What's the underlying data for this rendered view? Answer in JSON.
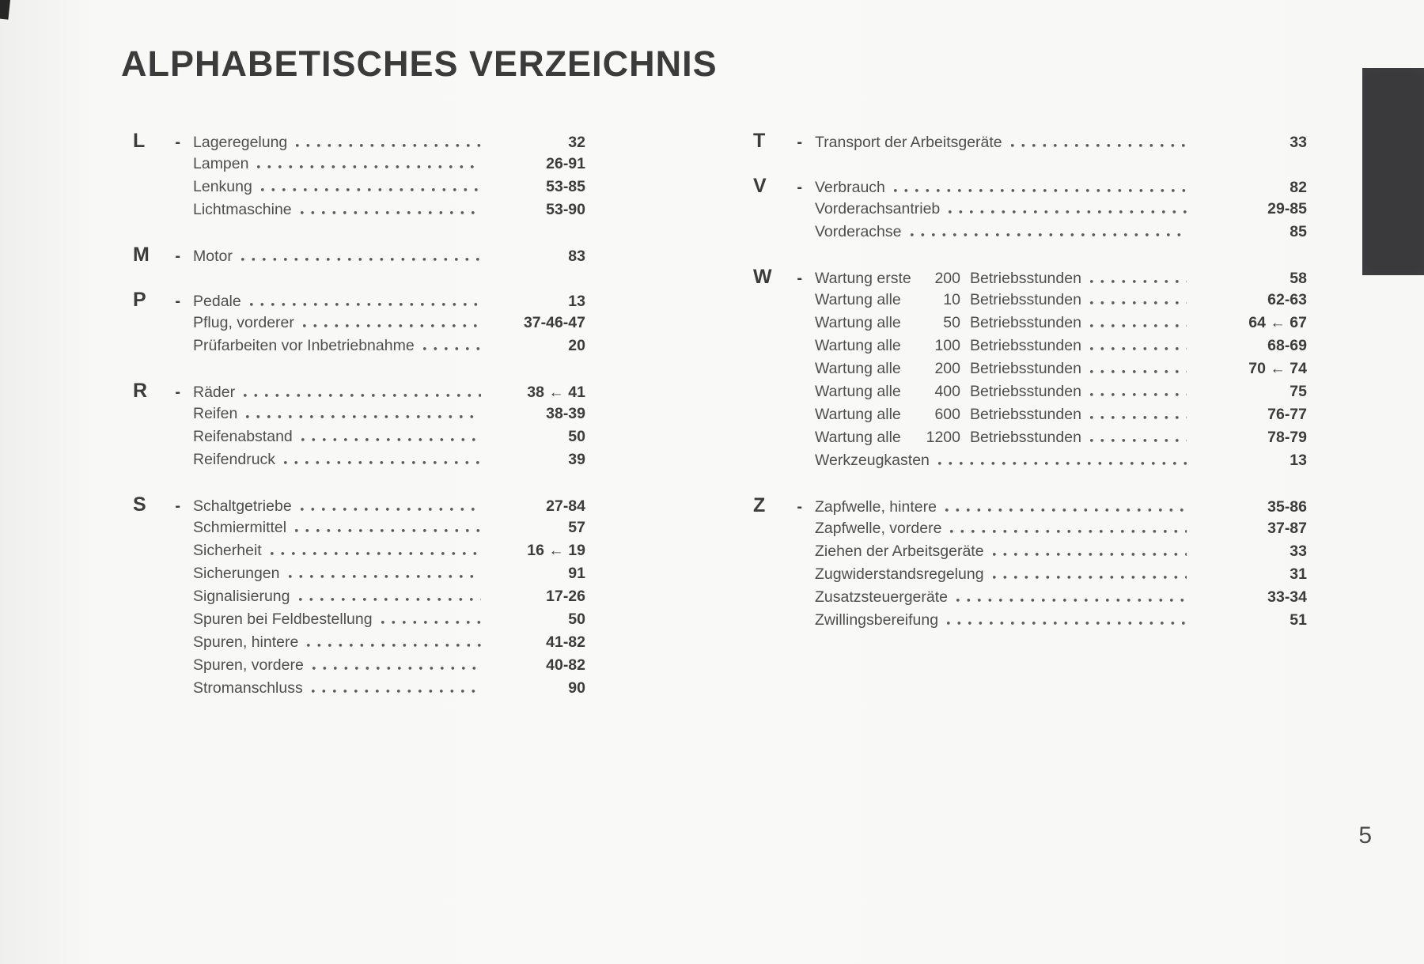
{
  "page": {
    "title": "ALPHABETISCHES VERZEICHNIS",
    "page_number": "5",
    "tab_color": "#3a393c"
  },
  "index": {
    "columns": [
      {
        "side": "left",
        "sections": [
          {
            "letter": "L",
            "entries": [
              {
                "label": "Lageregelung",
                "pages": "32"
              },
              {
                "label": "Lampen",
                "pages": "26-91"
              },
              {
                "label": "Lenkung",
                "pages": "53-85"
              },
              {
                "label": "Lichtmaschine",
                "pages": "53-90"
              }
            ]
          },
          {
            "letter": "M",
            "entries": [
              {
                "label": "Motor",
                "pages": "83"
              }
            ]
          },
          {
            "letter": "P",
            "entries": [
              {
                "label": "Pedale",
                "pages": "13"
              },
              {
                "label": "Pflug, vorderer",
                "pages": "37-46-47"
              },
              {
                "label": "Prüfarbeiten vor Inbetriebnahme",
                "pages": "20"
              }
            ]
          },
          {
            "letter": "R",
            "entries": [
              {
                "label": "Räder",
                "pages": "38 ← 41"
              },
              {
                "label": "Reifen",
                "pages": "38-39"
              },
              {
                "label": "Reifenabstand",
                "pages": "50"
              },
              {
                "label": "Reifendruck",
                "pages": "39"
              }
            ]
          },
          {
            "letter": "S",
            "entries": [
              {
                "label": "Schaltgetriebe",
                "pages": "27-84"
              },
              {
                "label": "Schmiermittel",
                "pages": "57"
              },
              {
                "label": "Sicherheit",
                "pages": "16 ← 19"
              },
              {
                "label": "Sicherungen",
                "pages": "91"
              },
              {
                "label": "Signalisierung",
                "pages": "17-26"
              },
              {
                "label": "Spuren bei Feldbestellung",
                "pages": "50"
              },
              {
                "label": "Spuren, hintere",
                "pages": "41-82"
              },
              {
                "label": "Spuren, vordere",
                "pages": "40-82"
              },
              {
                "label": "Stromanschluss",
                "pages": "90"
              }
            ]
          }
        ]
      },
      {
        "side": "right",
        "sections": [
          {
            "letter": "T",
            "entries": [
              {
                "label": "Transport der Arbeitsgeräte",
                "pages": "33"
              }
            ]
          },
          {
            "letter": "V",
            "entries": [
              {
                "label": "Verbrauch",
                "pages": "82"
              },
              {
                "label": "Vorderachsantrieb",
                "pages": "29-85"
              },
              {
                "label": "Vorderachse",
                "pages": "85"
              }
            ]
          },
          {
            "letter": "W",
            "entries": [
              {
                "label_parts": [
                  "Wartung erste",
                  "200",
                  "Betriebsstunden"
                ],
                "pages": "58"
              },
              {
                "label_parts": [
                  "Wartung alle",
                  "10",
                  "Betriebsstunden"
                ],
                "pages": "62-63"
              },
              {
                "label_parts": [
                  "Wartung alle",
                  "50",
                  "Betriebsstunden"
                ],
                "pages": "64 ← 67"
              },
              {
                "label_parts": [
                  "Wartung alle",
                  "100",
                  "Betriebsstunden"
                ],
                "pages": "68-69"
              },
              {
                "label_parts": [
                  "Wartung alle",
                  "200",
                  "Betriebsstunden"
                ],
                "pages": "70 ← 74"
              },
              {
                "label_parts": [
                  "Wartung alle",
                  "400",
                  "Betriebsstunden"
                ],
                "pages": "75"
              },
              {
                "label_parts": [
                  "Wartung alle",
                  "600",
                  "Betriebsstunden"
                ],
                "pages": "76-77"
              },
              {
                "label_parts": [
                  "Wartung alle",
                  "1200",
                  "Betriebsstunden"
                ],
                "pages": "78-79"
              },
              {
                "label": "Werkzeugkasten",
                "pages": "13"
              }
            ]
          },
          {
            "letter": "Z",
            "entries": [
              {
                "label": "Zapfwelle, hintere",
                "pages": "35-86"
              },
              {
                "label": "Zapfwelle, vordere",
                "pages": "37-87"
              },
              {
                "label": "Ziehen der Arbeitsgeräte",
                "pages": "33"
              },
              {
                "label": "Zugwiderstandsregelung",
                "pages": "31"
              },
              {
                "label": "Zusatzsteuergeräte",
                "pages": "33-34"
              },
              {
                "label": "Zwillingsbereifung",
                "pages": "51"
              }
            ]
          }
        ]
      }
    ]
  }
}
